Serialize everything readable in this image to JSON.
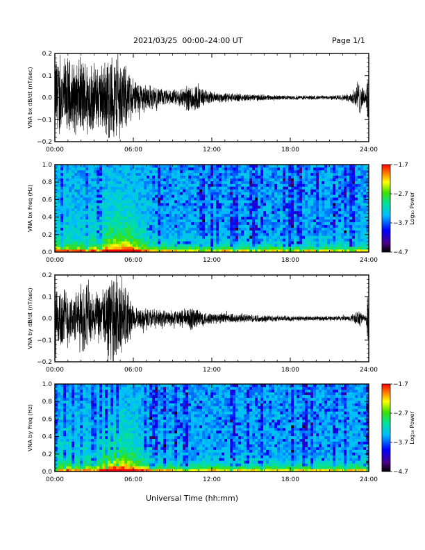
{
  "header": {
    "title": "2021/03/25  00:00–24:00 UT",
    "page": "Page 1/1"
  },
  "xlabel": "Universal Time (hh:mm)",
  "chart_data": [
    {
      "type": "line",
      "panel": "bx-waveform",
      "ylabel": "VNA bx dB/dt (nT/sec)",
      "xlim_hours": [
        0,
        24
      ],
      "ylim": [
        -0.2,
        0.2
      ],
      "x_ticks": [
        "00:00",
        "06:00",
        "12:00",
        "18:00",
        "24:00"
      ],
      "y_ticks": [
        "−0.2",
        "−0.1",
        "0.0",
        "0.1",
        "0.2"
      ],
      "y_tick_values": [
        -0.2,
        -0.1,
        0.0,
        0.1,
        0.2
      ],
      "envelope": {
        "hours": [
          0,
          0.5,
          1,
          1.5,
          2,
          2.5,
          3,
          3.5,
          4,
          4.5,
          5,
          5.5,
          6,
          6.5,
          7,
          7.5,
          8,
          8.5,
          9,
          9.5,
          10,
          10.5,
          11,
          11.5,
          12,
          13,
          14,
          15,
          16,
          17,
          18,
          19,
          20,
          21,
          22,
          22.5,
          23,
          23.3,
          23.5,
          23.8,
          24
        ],
        "amplitude": [
          0.22,
          0.2,
          0.2,
          0.18,
          0.2,
          0.2,
          0.17,
          0.16,
          0.22,
          0.22,
          0.21,
          0.15,
          0.1,
          0.08,
          0.07,
          0.06,
          0.05,
          0.04,
          0.035,
          0.05,
          0.06,
          0.08,
          0.06,
          0.04,
          0.03,
          0.025,
          0.02,
          0.018,
          0.015,
          0.012,
          0.01,
          0.012,
          0.01,
          0.01,
          0.015,
          0.02,
          0.06,
          0.09,
          0.05,
          0.03,
          0.2
        ]
      }
    },
    {
      "type": "heatmap",
      "panel": "bx-spectrogram",
      "ylabel": "VNA bx Freq (Hz)",
      "xlim_hours": [
        0,
        24
      ],
      "ylim": [
        0.0,
        1.0
      ],
      "x_ticks": [
        "00:00",
        "06:00",
        "12:00",
        "18:00",
        "24:00"
      ],
      "y_ticks": [
        "0.0",
        "0.2",
        "0.4",
        "0.6",
        "0.8",
        "1.0"
      ],
      "y_tick_values": [
        0.0,
        0.2,
        0.4,
        0.6,
        0.8,
        1.0
      ],
      "colorbar": {
        "label": "Log₁₀ Power",
        "range": [
          -4.7,
          -1.7
        ],
        "ticks": [
          "−1.7",
          "−2.7",
          "−3.7",
          "−4.7"
        ],
        "tick_values": [
          -1.7,
          -2.7,
          -3.7,
          -4.7
        ]
      },
      "activity_peak_hours": 5.0
    },
    {
      "type": "line",
      "panel": "by-waveform",
      "ylabel": "VNA by dB/dt (nT/sec)",
      "xlim_hours": [
        0,
        24
      ],
      "ylim": [
        -0.2,
        0.2
      ],
      "x_ticks": [
        "00:00",
        "06:00",
        "12:00",
        "18:00",
        "24:00"
      ],
      "y_ticks": [
        "−0.2",
        "−0.1",
        "0.0",
        "0.1",
        "0.2"
      ],
      "y_tick_values": [
        -0.2,
        -0.1,
        0.0,
        0.1,
        0.2
      ],
      "envelope": {
        "hours": [
          0,
          0.5,
          1,
          1.5,
          2,
          2.5,
          3,
          3.5,
          4,
          4.5,
          5,
          5.5,
          6,
          6.5,
          7,
          7.5,
          8,
          8.5,
          9,
          9.5,
          10,
          10.5,
          11,
          11.5,
          12,
          13,
          14,
          15,
          16,
          17,
          18,
          19,
          20,
          21,
          22,
          22.5,
          23,
          23.3,
          23.5,
          23.8,
          24
        ],
        "amplitude": [
          0.22,
          0.17,
          0.15,
          0.12,
          0.18,
          0.2,
          0.12,
          0.13,
          0.2,
          0.22,
          0.22,
          0.18,
          0.06,
          0.05,
          0.06,
          0.05,
          0.045,
          0.04,
          0.04,
          0.045,
          0.05,
          0.07,
          0.05,
          0.035,
          0.03,
          0.028,
          0.025,
          0.02,
          0.018,
          0.015,
          0.015,
          0.012,
          0.012,
          0.012,
          0.012,
          0.015,
          0.03,
          0.05,
          0.02,
          0.02,
          0.2
        ]
      }
    },
    {
      "type": "heatmap",
      "panel": "by-spectrogram",
      "ylabel": "VNA by Freq (Hz)",
      "xlim_hours": [
        0,
        24
      ],
      "ylim": [
        0.0,
        1.0
      ],
      "x_ticks": [
        "00:00",
        "06:00",
        "12:00",
        "18:00",
        "24:00"
      ],
      "y_ticks": [
        "0.0",
        "0.2",
        "0.4",
        "0.6",
        "0.8",
        "1.0"
      ],
      "y_tick_values": [
        0.0,
        0.2,
        0.4,
        0.6,
        0.8,
        1.0
      ],
      "colorbar": {
        "label": "Log₁₀ Power",
        "range": [
          -4.7,
          -1.7
        ],
        "ticks": [
          "−1.7",
          "−2.7",
          "−3.7",
          "−4.7"
        ],
        "tick_values": [
          -1.7,
          -2.7,
          -3.7,
          -4.7
        ]
      },
      "activity_peak_hours": 5.0
    }
  ]
}
